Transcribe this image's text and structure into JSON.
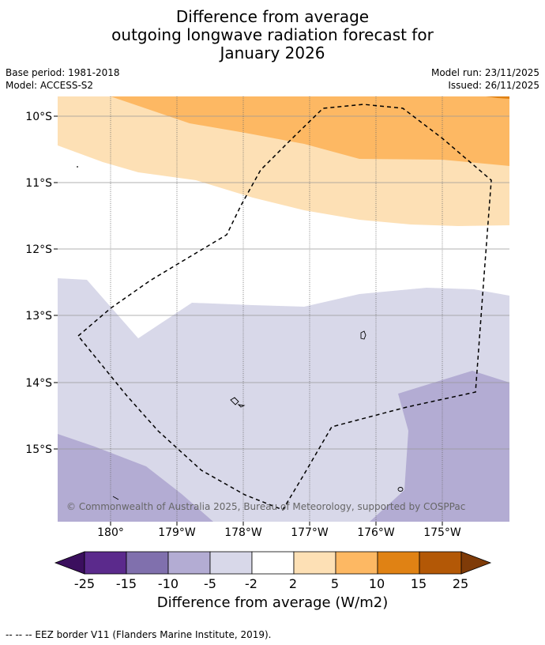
{
  "title": {
    "line1": "Difference from average",
    "line2": "outgoing longwave radiation forecast for",
    "line3": "January 2026"
  },
  "meta": {
    "base_period": "Base period: 1981-2018",
    "model": "Model: ACCESS-S2",
    "model_run": "Model run: 23/11/2025",
    "issued": "Issued: 26/11/2025"
  },
  "map": {
    "lat_labels": [
      "10°S",
      "11°S",
      "12°S",
      "13°S",
      "14°S",
      "15°S"
    ],
    "lon_labels": [
      "180°",
      "179°W",
      "178°W",
      "177°W",
      "176°W",
      "175°W"
    ],
    "copyright": "© Commonwealth of Australia 2025, Bureau of Meteorology, supported by COSPPac"
  },
  "colorbar": {
    "ticks": [
      "-25",
      "-15",
      "-10",
      "-5",
      "-2",
      "2",
      "5",
      "10",
      "15",
      "25"
    ],
    "colors": [
      "#3b0f5e",
      "#5b2a8c",
      "#8070ad",
      "#b3acd3",
      "#d8d8e9",
      "#ffffff",
      "#fde0b5",
      "#fdb863",
      "#e08214",
      "#b35806",
      "#7f3b08"
    ],
    "title": "Difference from average (W/m2)"
  },
  "footnote": "--  --  -- EEZ border V11 (Flanders Marine Institute, 2019)."
}
